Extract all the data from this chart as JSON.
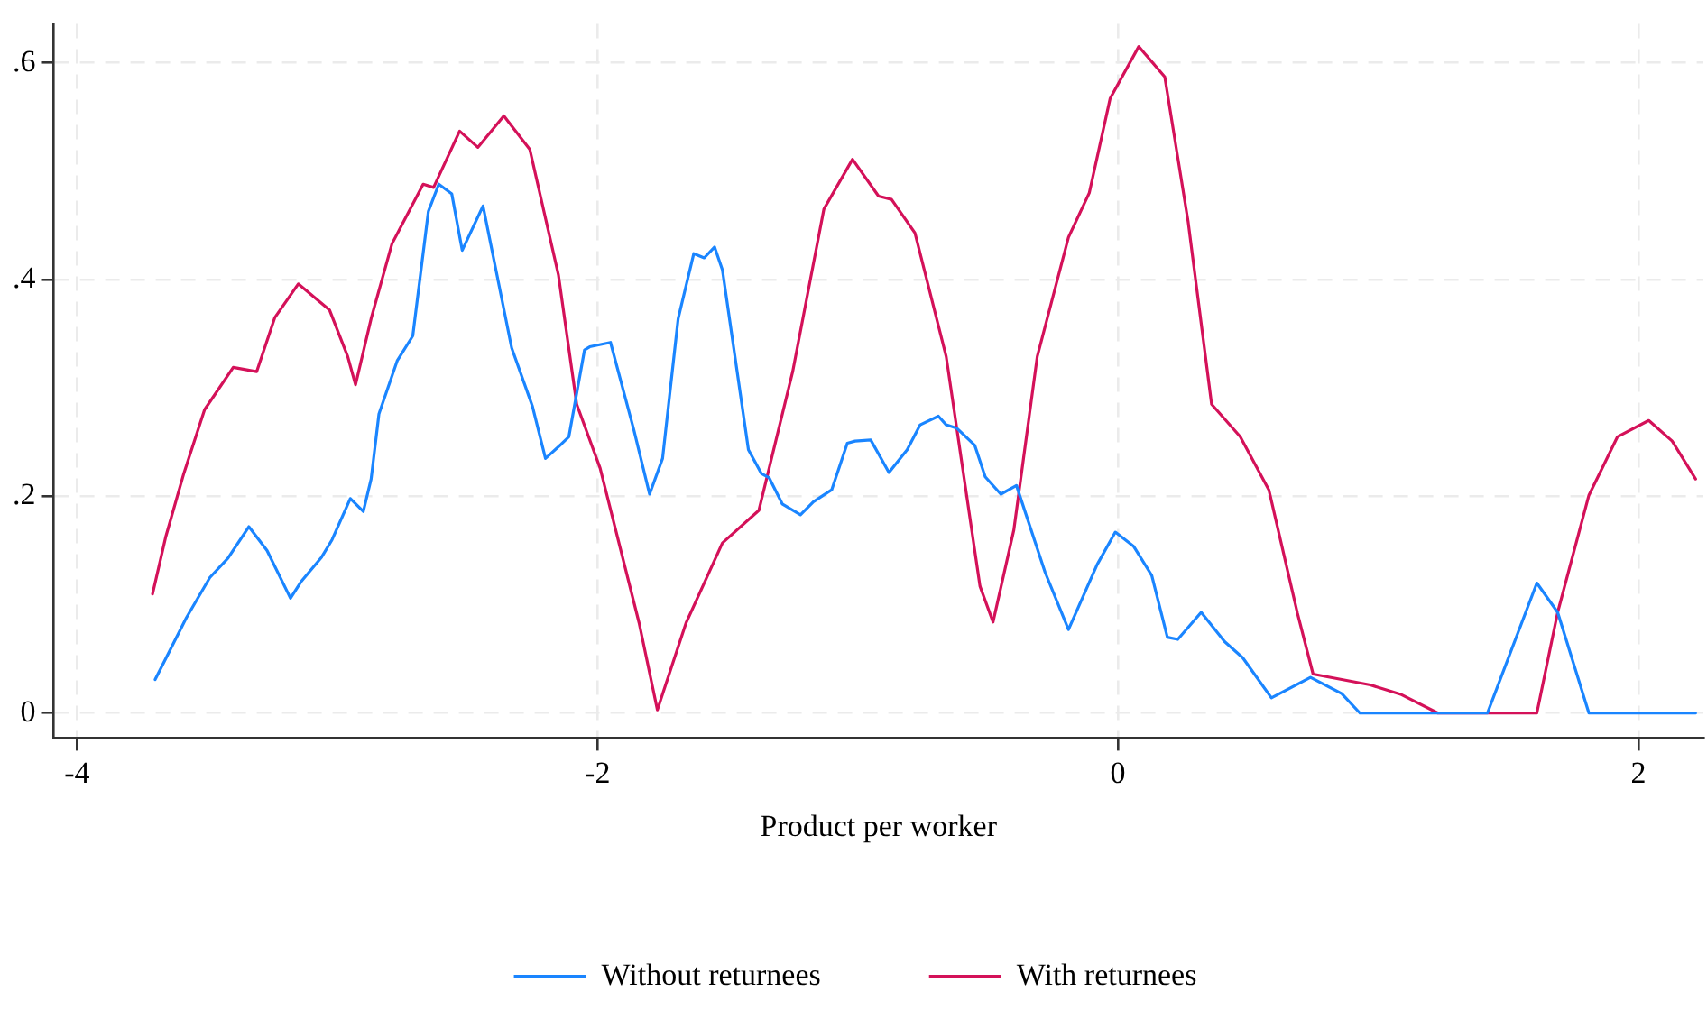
{
  "chart_data": {
    "type": "line",
    "xlabel": "Product per worker",
    "xlim": [
      -4.09,
      2.25
    ],
    "xticks": [
      {
        "value": -4,
        "label": "-4"
      },
      {
        "value": -2,
        "label": "-2"
      },
      {
        "value": 0,
        "label": "0"
      },
      {
        "value": 2,
        "label": "2"
      }
    ],
    "ylim": [
      -0.023,
      0.636
    ],
    "yticks": [
      {
        "value": 0,
        "label": "0"
      },
      {
        "value": 0.2,
        "label": ".2"
      },
      {
        "value": 0.4,
        "label": ".4"
      },
      {
        "value": 0.6,
        "label": ".6"
      }
    ],
    "grid": true,
    "legend": "bottom",
    "marker": "none",
    "line_style": "solid",
    "series": [
      {
        "name": "Without returnees",
        "color": "#1a85ff",
        "x": [
          -3.7,
          -3.66,
          -3.58,
          -3.49,
          -3.42,
          -3.34,
          -3.27,
          -3.18,
          -3.14,
          -3.06,
          -3.02,
          -2.95,
          -2.9,
          -2.87,
          -2.84,
          -2.77,
          -2.71,
          -2.65,
          -2.61,
          -2.56,
          -2.52,
          -2.44,
          -2.33,
          -2.25,
          -2.2,
          -2.14,
          -2.11,
          -2.05,
          -2.03,
          -1.95,
          -1.86,
          -1.8,
          -1.75,
          -1.69,
          -1.63,
          -1.59,
          -1.55,
          -1.52,
          -1.42,
          -1.37,
          -1.34,
          -1.29,
          -1.22,
          -1.17,
          -1.1,
          -1.04,
          -1.01,
          -0.95,
          -0.88,
          -0.81,
          -0.76,
          -0.69,
          -0.66,
          -0.62,
          -0.55,
          -0.51,
          -0.45,
          -0.39,
          -0.28,
          -0.19,
          -0.08,
          -0.01,
          0.06,
          0.13,
          0.19,
          0.23,
          0.32,
          0.41,
          0.48,
          0.59,
          0.74,
          0.86,
          0.93,
          1.42,
          1.61,
          1.69,
          1.81,
          2.22
        ],
        "values": [
          0.031,
          0.05,
          0.088,
          0.125,
          0.143,
          0.172,
          0.15,
          0.106,
          0.121,
          0.144,
          0.16,
          0.198,
          0.186,
          0.216,
          0.276,
          0.325,
          0.348,
          0.463,
          0.488,
          0.479,
          0.427,
          0.468,
          0.337,
          0.283,
          0.235,
          0.248,
          0.255,
          0.335,
          0.338,
          0.342,
          0.261,
          0.202,
          0.235,
          0.364,
          0.424,
          0.42,
          0.43,
          0.409,
          0.243,
          0.221,
          0.217,
          0.193,
          0.183,
          0.195,
          0.206,
          0.249,
          0.251,
          0.252,
          0.222,
          0.243,
          0.266,
          0.274,
          0.266,
          0.263,
          0.247,
          0.218,
          0.202,
          0.21,
          0.13,
          0.077,
          0.137,
          0.167,
          0.154,
          0.127,
          0.07,
          0.068,
          0.093,
          0.066,
          0.051,
          0.014,
          0.033,
          0.018,
          0,
          0,
          0.12,
          0.093,
          0,
          0
        ]
      },
      {
        "name": "With returnees",
        "color": "#d41159",
        "x": [
          -3.71,
          -3.66,
          -3.59,
          -3.51,
          -3.4,
          -3.31,
          -3.24,
          -3.15,
          -3.03,
          -2.96,
          -2.93,
          -2.87,
          -2.79,
          -2.67,
          -2.63,
          -2.53,
          -2.46,
          -2.36,
          -2.26,
          -2.15,
          -2.08,
          -1.99,
          -1.84,
          -1.77,
          -1.66,
          -1.52,
          -1.38,
          -1.25,
          -1.13,
          -1.02,
          -0.92,
          -0.87,
          -0.78,
          -0.66,
          -0.53,
          -0.48,
          -0.4,
          -0.31,
          -0.19,
          -0.11,
          -0.03,
          0.08,
          0.18,
          0.27,
          0.36,
          0.47,
          0.58,
          0.69,
          0.75,
          0.97,
          1.09,
          1.23,
          1.61,
          1.69,
          1.81,
          1.92,
          2.04,
          2.13,
          2.22
        ],
        "values": [
          0.11,
          0.162,
          0.221,
          0.28,
          0.319,
          0.315,
          0.365,
          0.396,
          0.372,
          0.329,
          0.303,
          0.364,
          0.433,
          0.488,
          0.485,
          0.537,
          0.522,
          0.551,
          0.52,
          0.404,
          0.285,
          0.226,
          0.083,
          0.003,
          0.083,
          0.157,
          0.187,
          0.315,
          0.465,
          0.511,
          0.477,
          0.474,
          0.443,
          0.329,
          0.117,
          0.084,
          0.169,
          0.329,
          0.439,
          0.48,
          0.567,
          0.615,
          0.587,
          0.453,
          0.285,
          0.255,
          0.206,
          0.092,
          0.036,
          0.026,
          0.017,
          0,
          0,
          0.093,
          0.201,
          0.255,
          0.27,
          0.251,
          0.216
        ]
      }
    ]
  }
}
